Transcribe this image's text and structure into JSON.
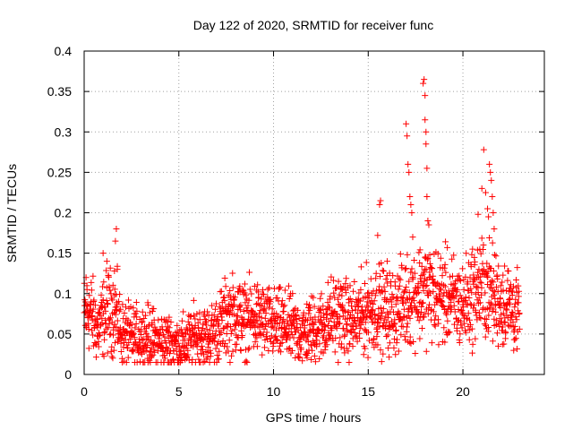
{
  "chart_data": {
    "type": "scatter",
    "title": "Day 122 of 2020, SRMTID for receiver func",
    "xlabel": "GPS time / hours",
    "ylabel": "SRMTID / TECUs",
    "xlim": [
      0,
      24.3
    ],
    "ylim": [
      0,
      0.4
    ],
    "xticks": [
      0,
      5,
      10,
      15,
      20
    ],
    "xtick_labels": [
      "0",
      "5",
      "10",
      "15",
      "20"
    ],
    "yticks": [
      0,
      0.05,
      0.1,
      0.15,
      0.2,
      0.25,
      0.3,
      0.35,
      0.4
    ],
    "ytick_labels": [
      "0",
      "0.05",
      "0.1",
      "0.15",
      "0.2",
      "0.25",
      "0.3",
      "0.35",
      "0.4"
    ],
    "grid": true,
    "marker": "+",
    "series_color": "#ff0000",
    "trend": [
      [
        0,
        0.072
      ],
      [
        0.3,
        0.08
      ],
      [
        0.7,
        0.055
      ],
      [
        1.0,
        0.07
      ],
      [
        1.3,
        0.08
      ],
      [
        1.7,
        0.075
      ],
      [
        2.0,
        0.05
      ],
      [
        2.5,
        0.045
      ],
      [
        3.0,
        0.048
      ],
      [
        3.5,
        0.045
      ],
      [
        4.0,
        0.04
      ],
      [
        4.5,
        0.04
      ],
      [
        5.0,
        0.035
      ],
      [
        5.5,
        0.04
      ],
      [
        6.0,
        0.05
      ],
      [
        6.5,
        0.045
      ],
      [
        7.0,
        0.055
      ],
      [
        7.5,
        0.07
      ],
      [
        8.0,
        0.075
      ],
      [
        8.5,
        0.065
      ],
      [
        9.0,
        0.07
      ],
      [
        9.5,
        0.065
      ],
      [
        10.0,
        0.06
      ],
      [
        10.5,
        0.06
      ],
      [
        11.0,
        0.055
      ],
      [
        11.5,
        0.05
      ],
      [
        12.0,
        0.055
      ],
      [
        12.5,
        0.06
      ],
      [
        13.0,
        0.07
      ],
      [
        13.5,
        0.075
      ],
      [
        14.0,
        0.065
      ],
      [
        14.5,
        0.07
      ],
      [
        15.0,
        0.08
      ],
      [
        15.5,
        0.085
      ],
      [
        16.0,
        0.075
      ],
      [
        16.5,
        0.08
      ],
      [
        17.0,
        0.09
      ],
      [
        17.5,
        0.1
      ],
      [
        18.0,
        0.105
      ],
      [
        18.5,
        0.1
      ],
      [
        19.0,
        0.095
      ],
      [
        19.5,
        0.09
      ],
      [
        20.0,
        0.085
      ],
      [
        20.5,
        0.1
      ],
      [
        21.0,
        0.11
      ],
      [
        21.5,
        0.1
      ],
      [
        22.0,
        0.09
      ],
      [
        22.5,
        0.085
      ],
      [
        23.0,
        0.07
      ]
    ],
    "spikes": [
      [
        0.1,
        0.12
      ],
      [
        0.15,
        0.105
      ],
      [
        1.0,
        0.15
      ],
      [
        1.2,
        0.14
      ],
      [
        1.6,
        0.128
      ],
      [
        1.65,
        0.165
      ],
      [
        1.7,
        0.18
      ],
      [
        1.75,
        0.13
      ],
      [
        15.5,
        0.172
      ],
      [
        15.6,
        0.21
      ],
      [
        15.65,
        0.215
      ],
      [
        16.0,
        0.14
      ],
      [
        17.0,
        0.31
      ],
      [
        17.05,
        0.295
      ],
      [
        17.1,
        0.26
      ],
      [
        17.15,
        0.25
      ],
      [
        17.2,
        0.22
      ],
      [
        17.25,
        0.21
      ],
      [
        17.3,
        0.2
      ],
      [
        17.35,
        0.17
      ],
      [
        17.9,
        0.36
      ],
      [
        17.95,
        0.365
      ],
      [
        18.0,
        0.345
      ],
      [
        18.0,
        0.315
      ],
      [
        18.05,
        0.3
      ],
      [
        18.05,
        0.285
      ],
      [
        18.1,
        0.255
      ],
      [
        18.1,
        0.22
      ],
      [
        18.15,
        0.19
      ],
      [
        18.2,
        0.185
      ],
      [
        20.8,
        0.198
      ],
      [
        21.0,
        0.23
      ],
      [
        21.1,
        0.278
      ],
      [
        21.2,
        0.225
      ],
      [
        21.3,
        0.205
      ],
      [
        21.35,
        0.195
      ],
      [
        21.4,
        0.26
      ],
      [
        21.45,
        0.25
      ],
      [
        21.5,
        0.24
      ],
      [
        21.55,
        0.22
      ],
      [
        21.6,
        0.2
      ],
      [
        21.65,
        0.18
      ]
    ]
  }
}
